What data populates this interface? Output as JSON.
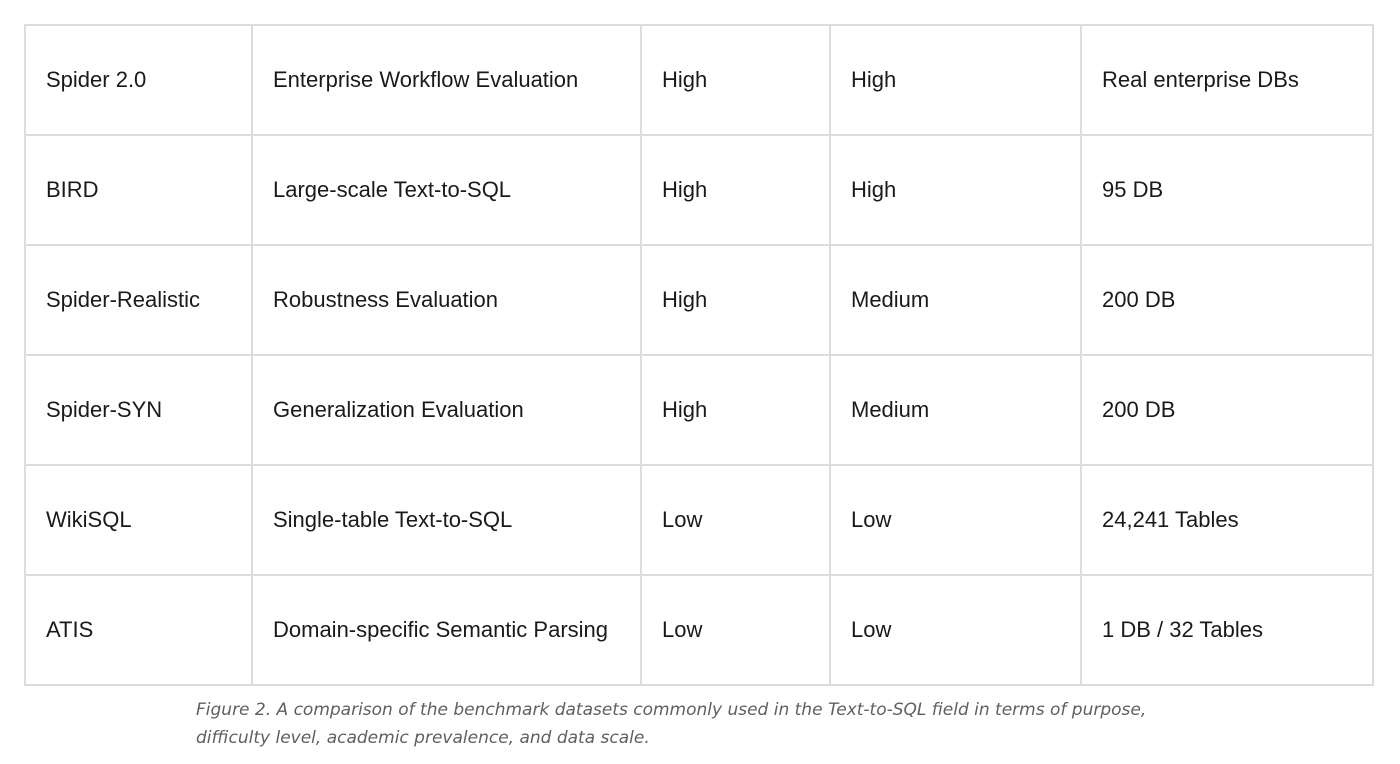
{
  "table": {
    "rows": [
      [
        "Spider 2.0",
        "Enterprise Workflow Evaluation",
        "High",
        "High",
        "Real enterprise DBs"
      ],
      [
        "BIRD",
        "Large-scale Text-to-SQL",
        "High",
        "High",
        "95 DB"
      ],
      [
        "Spider-Realistic",
        "Robustness Evaluation",
        "High",
        "Medium",
        "200 DB"
      ],
      [
        "Spider-SYN",
        "Generalization Evaluation",
        "High",
        "Medium",
        "200 DB"
      ],
      [
        "WikiSQL",
        "Single-table Text-to-SQL",
        "Low",
        "Low",
        "24,241 Tables"
      ],
      [
        "ATIS",
        "Domain-specific Semantic Parsing",
        "Low",
        "Low",
        "1 DB / 32 Tables"
      ]
    ]
  },
  "caption": {
    "text": "Figure 2. A comparison of the benchmark datasets commonly used in the Text-to-SQL field in terms of purpose, difficulty level, academic prevalence, and data scale."
  },
  "colors": {
    "border": "#dcdcdc",
    "text": "#1a1a1a",
    "caption": "#5f5f5f"
  }
}
